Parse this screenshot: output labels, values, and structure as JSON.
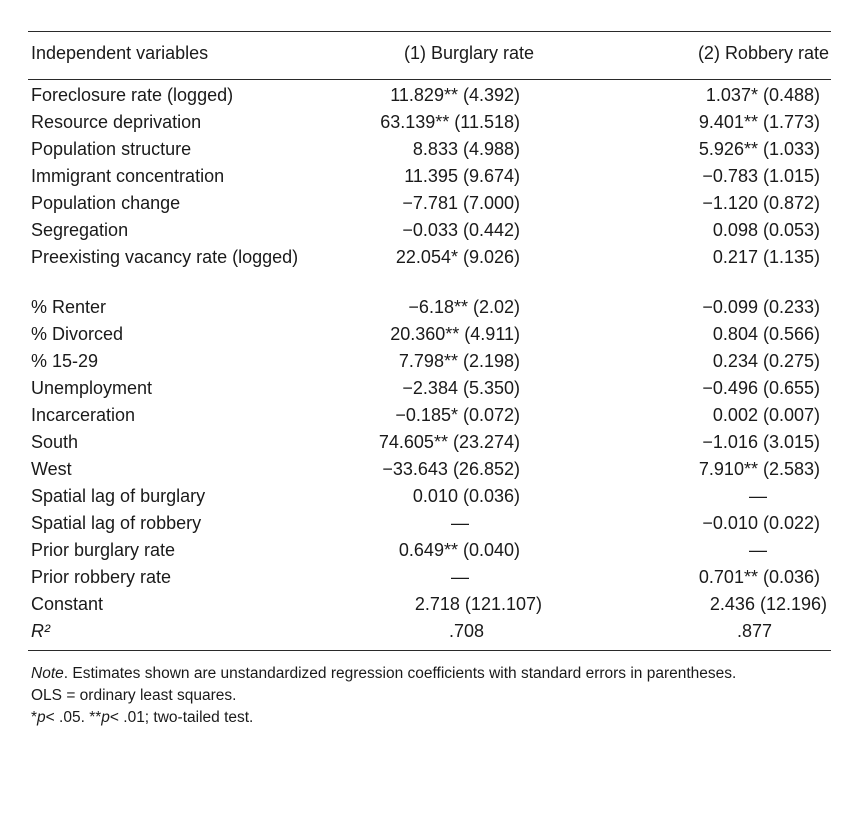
{
  "table": {
    "header": {
      "col0": "Independent variables",
      "col1": "(1) Burglary rate",
      "col2": "(2) Robbery rate"
    },
    "rows": [
      {
        "label": "Foreclosure rate (logged)",
        "burglary": "11.829** (4.392)",
        "robbery": "1.037* (0.488)"
      },
      {
        "label": "Resource deprivation",
        "burglary": "63.139** (11.518)",
        "robbery": "9.401** (1.773)"
      },
      {
        "label": "Population structure",
        "burglary": "8.833 (4.988)",
        "robbery": "5.926** (1.033)"
      },
      {
        "label": "Immigrant concentration",
        "burglary": "11.395 (9.674)",
        "robbery": "−0.783 (1.015)"
      },
      {
        "label": "Population change",
        "burglary": "−7.781 (7.000)",
        "robbery": "−1.120 (0.872)"
      },
      {
        "label": "Segregation",
        "burglary": "−0.033 (0.442)",
        "robbery": "0.098 (0.053)"
      },
      {
        "label": "Preexisting vacancy rate (logged)",
        "burglary": "22.054* (9.026)",
        "robbery": "0.217 (1.135)"
      },
      {
        "label": "% Renter",
        "burglary": "−6.18** (2.02)",
        "robbery": "−0.099 (0.233)"
      },
      {
        "label": "% Divorced",
        "burglary": "20.360** (4.911)",
        "robbery": "0.804 (0.566)"
      },
      {
        "label": "% 15-29",
        "burglary": "7.798** (2.198)",
        "robbery": "0.234 (0.275)"
      },
      {
        "label": "Unemployment",
        "burglary": "−2.384 (5.350)",
        "robbery": "−0.496 (0.655)"
      },
      {
        "label": "Incarceration",
        "burglary": "−0.185* (0.072)",
        "robbery": "0.002 (0.007)"
      },
      {
        "label": "South",
        "burglary": "74.605** (23.274)",
        "robbery": "−1.016 (3.015)"
      },
      {
        "label": "West",
        "burglary": "−33.643 (26.852)",
        "robbery": "7.910** (2.583)"
      },
      {
        "label": "Spatial lag of burglary",
        "burglary": "0.010 (0.036)",
        "robbery": "—"
      },
      {
        "label": "Spatial lag of robbery",
        "burglary": "—",
        "robbery": "−0.010 (0.022)"
      },
      {
        "label": "Prior burglary rate",
        "burglary": "0.649** (0.040)",
        "robbery": "—"
      },
      {
        "label": "Prior robbery rate",
        "burglary": "—",
        "robbery": "0.701** (0.036)"
      },
      {
        "label": "Constant",
        "burglary": "2.718 (121.107)",
        "robbery": "2.436 (12.196)"
      },
      {
        "label": "R²",
        "burglary": ".708",
        "robbery": ".877"
      }
    ]
  },
  "notes": {
    "note_label": "Note",
    "line1_rest": ". Estimates shown are unstandardized regression coefficients with standard errors in parentheses.",
    "line2": "OLS = ordinary least squares.",
    "sig1_star": "*",
    "sig1_p": "p",
    "sig1_rest": "< .05. ",
    "sig2_star": "**",
    "sig2_p": "p",
    "sig2_rest": "< .01; two-tailed test."
  }
}
